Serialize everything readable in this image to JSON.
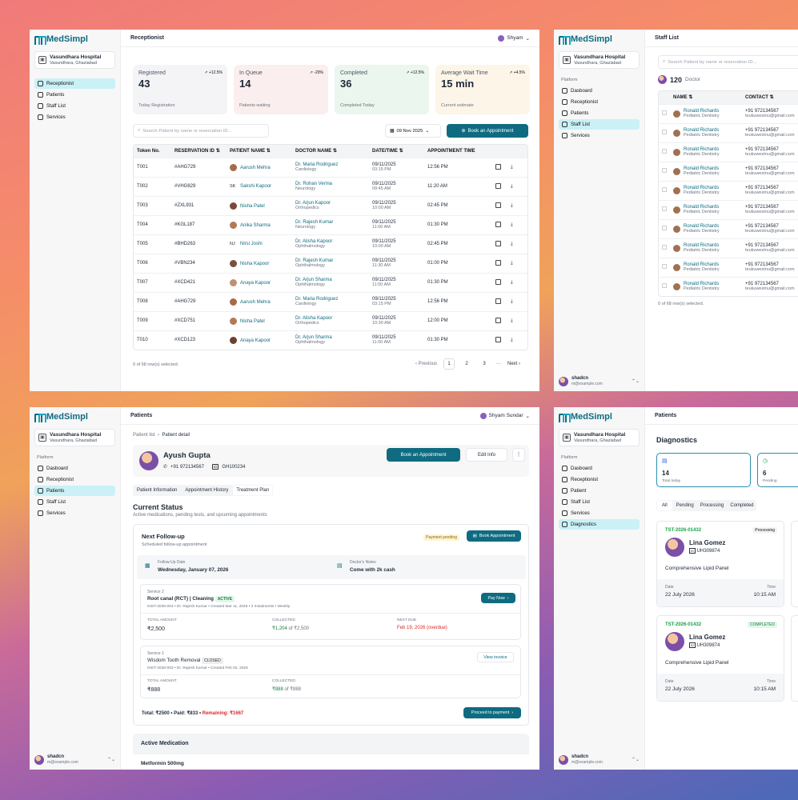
{
  "brand": "MedSimpl",
  "hospital": {
    "name": "Vasundhara Hospital",
    "city": "Vasundhara, Ghaziabad"
  },
  "user": {
    "name": "shadcn",
    "email": "m@example.com"
  },
  "w1": {
    "title": "Receptionist",
    "me": "Shyam",
    "nav": [
      "Receptionist",
      "Patients",
      "Staff List",
      "Services"
    ],
    "stats": [
      {
        "label": "Registered",
        "value": "43",
        "trend": "+12.5%",
        "sub": "Today Registration",
        "bg": "#f4f4f6"
      },
      {
        "label": "In Queue",
        "value": "14",
        "trend": "-20%",
        "sub": "Patients waiting",
        "bg": "#fbeeee"
      },
      {
        "label": "Completed",
        "value": "36",
        "trend": "+12.5%",
        "sub": "Completed Today",
        "bg": "#eaf6ee"
      },
      {
        "label": "Average Wait Time",
        "value": "15 min",
        "trend": "+4.5%",
        "sub": "Current estimate",
        "bg": "#fdf5e8"
      }
    ],
    "search": "Search Patient by name or reservation ID...",
    "date": "09 Nov 2025",
    "book": "Book an Appointment",
    "cols": [
      "Token No.",
      "RESERVATION ID",
      "PATIENT NAME",
      "DOCTOR NAME",
      "DATE/TIME",
      "APPOINTMENT TIME"
    ],
    "rows": [
      [
        "T001",
        "#AHG729",
        "Aarush Mehra",
        "Dr. Maria Rodriguez",
        "Cardiology",
        "09/11/2025",
        "03:15 PM",
        "12:56 PM",
        ""
      ],
      [
        "T002",
        "#VHG829",
        "Sakshi Kapoor",
        "Dr. Rohan Verma",
        "Neurology",
        "09/11/2025",
        "09:45 AM",
        "11:20 AM",
        "SK"
      ],
      [
        "T003",
        "#ZXL931",
        "Nisha Patel",
        "Dr. Arjun Kapoor",
        "Orthopedics",
        "09/11/2025",
        "10:00 AM",
        "02:45 PM",
        ""
      ],
      [
        "T004",
        "#KGL187",
        "Anika Sharma",
        "Dr. Rajesh Kumar",
        "Neurology",
        "09/11/2025",
        "11:00 AM",
        "01:30 PM",
        ""
      ],
      [
        "T005",
        "#BHD263",
        "Nirsi Joshi",
        "Dr. Alisha Kapoor",
        "Ophthalmology",
        "09/11/2025",
        "10:00 AM",
        "02:45 PM",
        "NJ"
      ],
      [
        "T006",
        "#VBN234",
        "Nisha Kapoor",
        "Dr. Rajesh Kumar",
        "Ophthalmology",
        "09/11/2025",
        "11:30 AM",
        "01:00 PM",
        ""
      ],
      [
        "T007",
        "#XCD421",
        "Anaya Kapoor",
        "Dr. Arjun Sharma",
        "Ophthalmology",
        "09/11/2025",
        "11:00 AM",
        "01:30 PM",
        ""
      ],
      [
        "T008",
        "#AHG729",
        "Aarush Mehra",
        "Dr. Maria Rodriguez",
        "Cardiology",
        "09/11/2025",
        "03:15 PM",
        "12:56 PM",
        ""
      ],
      [
        "T009",
        "#XCD751",
        "Nisha Patel",
        "Dr. Alisha Kapoor",
        "Orthopedics",
        "09/11/2025",
        "10:30 AM",
        "12:00 PM",
        ""
      ],
      [
        "T010",
        "#XCD123",
        "Anaya Kapoor",
        "Dr. Arjun Sharma",
        "Ophthalmology",
        "09/11/2025",
        "11:00 AM",
        "01:30 PM",
        ""
      ]
    ],
    "selected": "0 of 68 row(s) selected.",
    "pager": {
      "prev": "Previous",
      "pages": [
        "1",
        "2",
        "3"
      ],
      "dots": "···",
      "next": "Next"
    }
  },
  "w2": {
    "title": "Staff List",
    "platform": "Platform",
    "nav": [
      "Dasboard",
      "Receptionist",
      "Patients",
      "Staff List",
      "Services"
    ],
    "search": "Search Patient by name or reservation ID...",
    "count": "120",
    "countLabel": "Doctor",
    "cols": [
      "NAME",
      "CONTACT"
    ],
    "rows": [
      [
        "Ronald Richards",
        "Pediatric Dentistry",
        "+91 972134567",
        "teukuwestnu@gmail.com"
      ],
      [
        "Ronald Richards",
        "Pediatric Dentistry",
        "+91 972134567",
        "teukuwestnu@gmail.com"
      ],
      [
        "Ronald Richards",
        "Pediatric Dentistry",
        "+91 972134567",
        "teukuwestnu@gmail.com"
      ],
      [
        "Ronald Richards",
        "Pediatric Dentistry",
        "+91 972134567",
        "teukuwestnu@gmail.com"
      ],
      [
        "Ronald Richards",
        "Pediatric Dentistry",
        "+91 972134567",
        "teukuwestnu@gmail.com"
      ],
      [
        "Ronald Richards",
        "Pediatric Dentistry",
        "+91 972134567",
        "teukuwestnu@gmail.com"
      ],
      [
        "Ronald Richards",
        "Pediatric Dentistry",
        "+91 972134567",
        "teukuwestnu@gmail.com"
      ],
      [
        "Ronald Richards",
        "Pediatric Dentistry",
        "+91 972134567",
        "teukuwestnu@gmail.com"
      ],
      [
        "Ronald Richards",
        "Pediatric Dentistry",
        "+91 972134567",
        "teukuwestnu@gmail.com"
      ],
      [
        "Ronald Richards",
        "Pediatric Dentistry",
        "+91 972134567",
        "teukuwestnu@gmail.com"
      ]
    ],
    "selected": "0 of 68 row(s) selected."
  },
  "w3": {
    "title": "Patients",
    "me": "Shyam Sundar",
    "platform": "Platform",
    "nav": [
      "Dasboard",
      "Receptionist",
      "Patients",
      "Staff List",
      "Services"
    ],
    "crumb1": "Patient list",
    "crumb2": "Patient detail",
    "patient": {
      "name": "Ayush Gupta",
      "phone": "+91 972134567",
      "id": "GH100234"
    },
    "book": "Book an Appointment",
    "edit": "Edit Info",
    "tabs": [
      "Patient Information",
      "Appointment History",
      "Treatment Plan"
    ],
    "status": "Current Status",
    "statusSub": "Active medications, pending tests, and upcoming appointments",
    "follow": {
      "title": "Next Follow-up",
      "sub": "Scheduled follow-up appointment",
      "badge": "Payment pending",
      "btn": "Book Appointment",
      "dateL": "Follow-Up Date",
      "date": "Wednesday, January 07, 2026",
      "noteL": "Doctor's Notes",
      "note": "Come with 2k cash"
    },
    "svc2": {
      "label": "Service 2",
      "name": "Root canal (RCT) | Cleaning",
      "badge": "ACTIVE",
      "meta": "INST-2026-003  •  Dr. Rajesh Kumar  •  Created Mar 11, 2026  •  2 Instalments  •  Weekly",
      "btn": "Pay Now",
      "totL": "TOTAL AMOUNT",
      "tot": "₹2,500",
      "colL": "COLLECTED",
      "col": "₹1,204",
      "colOf": "of ₹2,500",
      "dueL": "NEXT DUE",
      "due": "Feb 19, 2026 (overdue)"
    },
    "svc1": {
      "label": "Service 1",
      "name": "Wisdom Tooth Removal",
      "badge": "CLOSED",
      "meta": "INST-2026-003  •  Dr. Rajesh Kumar  •  Created Feb 02, 2026",
      "btn": "View invoice",
      "totL": "TOTAL AMOUNT",
      "tot": "₹888",
      "colL": "COLLECTED",
      "col": "₹888",
      "colOf": "of ₹888"
    },
    "total": "Total: ₹2500 • Paid: ₹833 •",
    "remaining": "Remaining: ₹1667",
    "proceed": "Proceed to payment",
    "med": "Active Medication",
    "medItem": "Metformin 500mg"
  },
  "w4": {
    "title": "Patients",
    "heading": "Diagnostics",
    "platform": "Platform",
    "nav": [
      "Dasboard",
      "Receptionist",
      "Patient",
      "Staff List",
      "Services",
      "Diagnostics"
    ],
    "stats": [
      {
        "v": "14",
        "l": "Total today"
      },
      {
        "v": "6",
        "l": "Pending"
      }
    ],
    "filters": [
      "All",
      "Pending",
      "Processing",
      "Completed"
    ],
    "cards": [
      {
        "id": "TST-2026-01432",
        "badge": "Processing",
        "name": "Lina Gomez",
        "uid": "UH309874",
        "test": "Comprehensive Lipid Panel",
        "dateL": "Date",
        "date": "22 July 2026",
        "timeL": "Time",
        "time": "10:15 AM"
      },
      {
        "id": "TST-2026-01432",
        "badge": "COMPLETED",
        "name": "Lina Gomez",
        "uid": "UH309874",
        "test": "Comprehensive Lipid Panel",
        "dateL": "Date",
        "date": "22 July 2026",
        "timeL": "Time",
        "time": "10:15 AM"
      }
    ]
  }
}
